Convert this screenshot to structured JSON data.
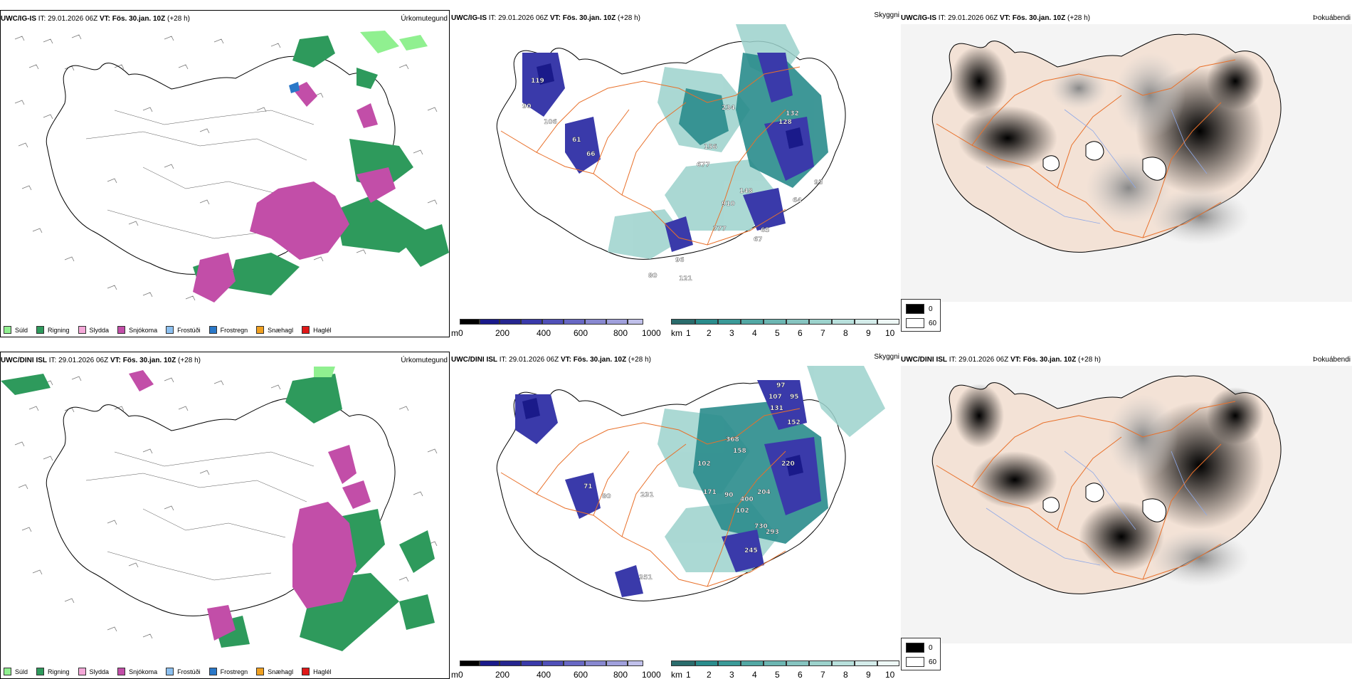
{
  "rows": [
    {
      "model": "UWC/IG-IS",
      "it_label": "IT:",
      "it_value": "29.01.2026 06Z",
      "vt_label": "VT:",
      "vt_value": "Fös. 30.jan. 10Z",
      "lead": "(+28 h)"
    },
    {
      "model": "UWC/DINI ISL",
      "it_label": "IT:",
      "it_value": "29.01.2026 06Z",
      "vt_label": "VT:",
      "vt_value": "Fös. 30.jan. 10Z",
      "lead": "(+28 h)"
    }
  ],
  "precip_panel": {
    "title_right": "Úrkomutegund",
    "legend": [
      {
        "label": "Súld",
        "color": "#90f090"
      },
      {
        "label": "Rigning",
        "color": "#2e9a5c"
      },
      {
        "label": "Slydda",
        "color": "#f4a8d8"
      },
      {
        "label": "Snjókoma",
        "color": "#c24ea8"
      },
      {
        "label": "Frostúði",
        "color": "#8cc0f0"
      },
      {
        "label": "Frostregn",
        "color": "#2a78c8"
      },
      {
        "label": "Snæhagl",
        "color": "#f0a020"
      },
      {
        "label": "Haglél",
        "color": "#e01818"
      }
    ]
  },
  "cloud_panel": {
    "title_right": "Skyggni",
    "height_unit": "m",
    "height_ticks": [
      "0",
      "200",
      "400",
      "600",
      "800",
      "1000"
    ],
    "vis_unit": "km",
    "vis_ticks": [
      "1",
      "2",
      "3",
      "4",
      "5",
      "6",
      "7",
      "8",
      "9",
      "10"
    ],
    "top_labels": [
      "119",
      "90",
      "106",
      "61",
      "66",
      "234",
      "156",
      "677",
      "128",
      "132",
      "148",
      "910",
      "777",
      "65",
      "67",
      "96",
      "121",
      "80",
      "93",
      "64"
    ],
    "bottom_labels": [
      "97",
      "107",
      "131",
      "95",
      "152",
      "220",
      "368",
      "158",
      "102",
      "171",
      "90",
      "204",
      "400",
      "102",
      "730",
      "293",
      "245",
      "351",
      "71",
      "80",
      "231"
    ],
    "colors": {
      "dark": "#1a1a8a",
      "mid": "#3a3aaa",
      "light": "#8888d0",
      "teal": "#2a8c8c",
      "teal_light": "#9cd2cc"
    }
  },
  "fog_panel": {
    "title_right": "Þokuábendi",
    "legend": [
      {
        "label": "0",
        "color": "#000000"
      },
      {
        "label": "60",
        "color": "#ffffff"
      }
    ]
  },
  "colors": {
    "land_fill": "#f3e2d6",
    "roads": "#e8702a",
    "coast": "#000000",
    "rivers": "#8ea8e8"
  }
}
